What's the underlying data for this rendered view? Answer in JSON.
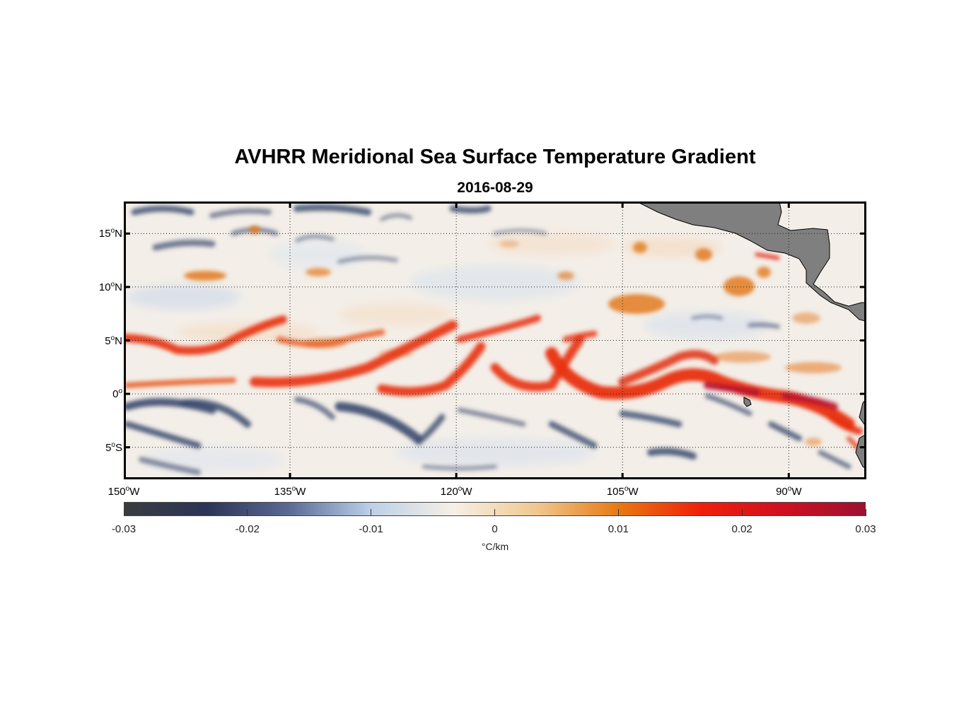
{
  "title": "AVHRR Meridional Sea Surface Temperature Gradient",
  "date": "2016-08-29",
  "map": {
    "lon_range": [
      -150,
      -83
    ],
    "lat_range": [
      -8,
      18
    ],
    "lat_labels": [
      {
        "deg": "15",
        "hemi": "N",
        "value": 15
      },
      {
        "deg": "10",
        "hemi": "N",
        "value": 10
      },
      {
        "deg": "5",
        "hemi": "N",
        "value": 5
      },
      {
        "deg": "0",
        "hemi": "",
        "value": 0
      },
      {
        "deg": "5",
        "hemi": "S",
        "value": -5
      }
    ],
    "lon_labels": [
      {
        "deg": "150",
        "hemi": "W",
        "value": -150
      },
      {
        "deg": "135",
        "hemi": "W",
        "value": -135
      },
      {
        "deg": "120",
        "hemi": "W",
        "value": -120
      },
      {
        "deg": "105",
        "hemi": "W",
        "value": -105
      },
      {
        "deg": "90",
        "hemi": "W",
        "value": -90
      }
    ],
    "colors": {
      "land": "#7f7f7f",
      "ocean_base": "#f3eee8",
      "strong_positive": "#e8300c",
      "positive": "#e27a1c",
      "negative": "#3a4a6e"
    }
  },
  "colorbar": {
    "ticks": [
      "-0.03",
      "-0.02",
      "-0.01",
      "0",
      "0.01",
      "0.02",
      "0.03"
    ],
    "tick_values": [
      -0.03,
      -0.02,
      -0.01,
      0,
      0.01,
      0.02,
      0.03
    ],
    "unit_symbol": "°",
    "unit_text": "C/km",
    "stops": [
      "#3b3b40",
      "#2b3556",
      "#5a6a96",
      "#bcd0e8",
      "#f6f0e6",
      "#f0c890",
      "#e87a10",
      "#f0200a",
      "#d01020",
      "#9e1030"
    ]
  }
}
